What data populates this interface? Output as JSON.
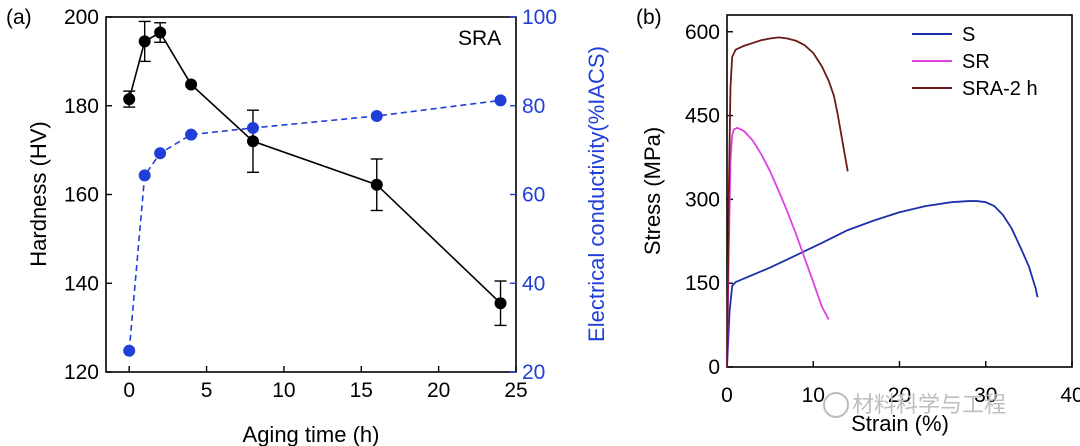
{
  "panel_a": {
    "label": "(a)",
    "annotation": "SRA"
  },
  "panel_b": {
    "label": "(b)"
  },
  "watermark": "材料科学与工程",
  "colors": {
    "hardness": "#000000",
    "conductivity": "#1f3fd8",
    "S": "#1f2ea8",
    "SR": "#e040e0",
    "SRA": "#6b1a1a"
  },
  "chart_data": [
    {
      "type": "line",
      "xlabel": "Aging time (h)",
      "ylabel": "Hardness (HV)",
      "y2label": "Electrical conductivity(%IACS)",
      "xlim": [
        -1.5,
        25
      ],
      "ylim": [
        120,
        200
      ],
      "y2lim": [
        20,
        100
      ],
      "xticks": [
        0,
        5,
        10,
        15,
        20,
        25
      ],
      "yticks": [
        120,
        140,
        160,
        180,
        200
      ],
      "y2ticks": [
        20,
        40,
        60,
        80,
        100
      ],
      "grid": false,
      "series": [
        {
          "axis": "left",
          "x": [
            0,
            1,
            2,
            4,
            8,
            16,
            24
          ],
          "values": [
            181.5,
            194.5,
            196.5,
            184.8,
            172,
            162.2,
            135.5
          ],
          "errors": [
            1.8,
            4.5,
            2.2,
            0,
            7,
            5.8,
            5
          ]
        },
        {
          "axis": "right",
          "x": [
            0,
            1,
            2,
            4,
            8,
            16,
            24
          ],
          "values": [
            24.8,
            64.3,
            69.3,
            73.5,
            75.0,
            77.7,
            81.2
          ]
        }
      ]
    },
    {
      "type": "line",
      "xlabel": "Strain (%)",
      "ylabel": "Stress (MPa)",
      "xlim": [
        0,
        40
      ],
      "ylim": [
        0,
        630
      ],
      "xticks": [
        0,
        10,
        20,
        30,
        40
      ],
      "yticks": [
        0,
        150,
        300,
        450,
        600
      ],
      "grid": false,
      "legend": "top-right",
      "series": [
        {
          "name": "S",
          "x": [
            0,
            0.3,
            0.6,
            1,
            3,
            5,
            8,
            11,
            14,
            17,
            20,
            23,
            26,
            28,
            29,
            30,
            31,
            32,
            33,
            34,
            35,
            35.8,
            36
          ],
          "values": [
            0,
            100,
            145,
            152,
            165,
            178,
            200,
            222,
            245,
            262,
            277,
            288,
            295,
            297,
            297,
            295,
            288,
            272,
            248,
            215,
            180,
            140,
            125
          ]
        },
        {
          "name": "SR",
          "x": [
            0,
            0.2,
            0.4,
            0.6,
            0.8,
            1.2,
            2,
            3,
            4,
            5,
            6,
            7,
            8,
            9,
            10,
            11,
            11.8
          ],
          "values": [
            0,
            200,
            370,
            415,
            425,
            428,
            422,
            405,
            380,
            350,
            315,
            278,
            238,
            195,
            152,
            108,
            85
          ]
        },
        {
          "name": "SRA-2 h",
          "x": [
            0,
            0.2,
            0.4,
            0.6,
            1,
            2,
            3,
            4,
            5,
            6,
            7,
            8,
            9,
            10,
            11,
            11.8,
            12.4,
            12.8,
            13.2,
            13.6,
            14
          ],
          "values": [
            0,
            300,
            500,
            555,
            568,
            575,
            580,
            585,
            588,
            590,
            588,
            584,
            576,
            562,
            538,
            512,
            485,
            455,
            420,
            385,
            350
          ]
        }
      ]
    }
  ]
}
